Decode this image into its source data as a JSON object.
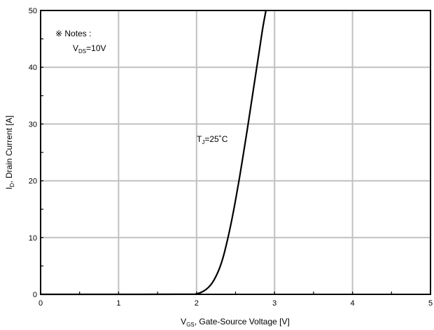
{
  "chart_data": {
    "type": "line",
    "title": "",
    "xlabel": {
      "main": "V",
      "sub": "GS",
      "rest": ", Gate-Source Voltage [V]"
    },
    "ylabel": {
      "main": "I",
      "sub": "D",
      "rest": ", Drain Current [A]"
    },
    "xlim": [
      0,
      5
    ],
    "ylim": [
      0,
      50
    ],
    "x_ticks": [
      0,
      1,
      2,
      3,
      4,
      5
    ],
    "y_ticks": [
      0,
      10,
      20,
      30,
      40,
      50
    ],
    "x_tick_labels": [
      "0",
      "1",
      "2",
      "3",
      "4",
      "5"
    ],
    "y_tick_labels": [
      "0",
      "10",
      "20",
      "30",
      "40",
      "50"
    ],
    "grid": true,
    "series": [
      {
        "name": "",
        "x": [
          0.0,
          1.0,
          1.9,
          2.0,
          2.05,
          2.1,
          2.15,
          2.2,
          2.25,
          2.3,
          2.35,
          2.4,
          2.45,
          2.5,
          2.55,
          2.6,
          2.65,
          2.7,
          2.75,
          2.8,
          2.85,
          2.89
        ],
        "y": [
          0.0,
          0.0,
          0.02,
          0.1,
          0.3,
          0.65,
          1.2,
          2.0,
          3.2,
          4.8,
          7.0,
          9.8,
          13.0,
          16.6,
          20.5,
          24.7,
          29.0,
          33.5,
          38.0,
          42.5,
          47.0,
          50.0
        ]
      }
    ],
    "annotations": {
      "notes_title": "※ Notes :",
      "vds_main": "V",
      "vds_sub": "DS",
      "vds_rest": "=10V",
      "tj_main": "T",
      "tj_sub": "J",
      "tj_rest": "=25˚C"
    }
  }
}
